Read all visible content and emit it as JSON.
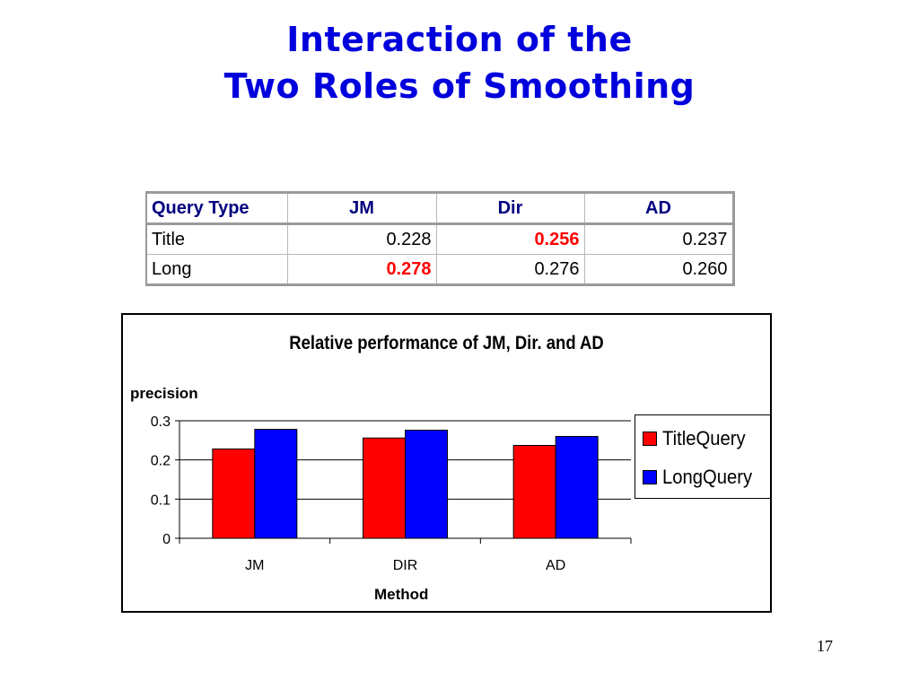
{
  "slide": {
    "title_line1": "Interaction of the",
    "title_line2": "Two Roles of Smoothing",
    "page_number": "17"
  },
  "table": {
    "headers": [
      "Query Type",
      "JM",
      "Dir",
      "AD"
    ],
    "rows": [
      {
        "label": "Title",
        "jm": "0.228",
        "dir": "0.256",
        "ad": "0.237",
        "best": "dir"
      },
      {
        "label": "Long",
        "jm": "0.278",
        "dir": "0.276",
        "ad": "0.260",
        "best": "jm"
      }
    ],
    "best_color": "#ff0000",
    "header_color": "#000080"
  },
  "chart_data": {
    "type": "bar",
    "title": "Relative performance of JM, Dir. and AD",
    "xlabel": "Method",
    "ylabel": "precision",
    "categories": [
      "JM",
      "DIR",
      "AD"
    ],
    "series": [
      {
        "name": "TitleQuery",
        "values": [
          0.228,
          0.256,
          0.237
        ],
        "color": "#ff0000"
      },
      {
        "name": "LongQuery",
        "values": [
          0.278,
          0.276,
          0.26
        ],
        "color": "#0000ff"
      }
    ],
    "ylim": [
      0,
      0.3
    ],
    "yticks": [
      "0",
      "0.1",
      "0.2",
      "0.3"
    ],
    "grid": true,
    "legend": "right"
  }
}
